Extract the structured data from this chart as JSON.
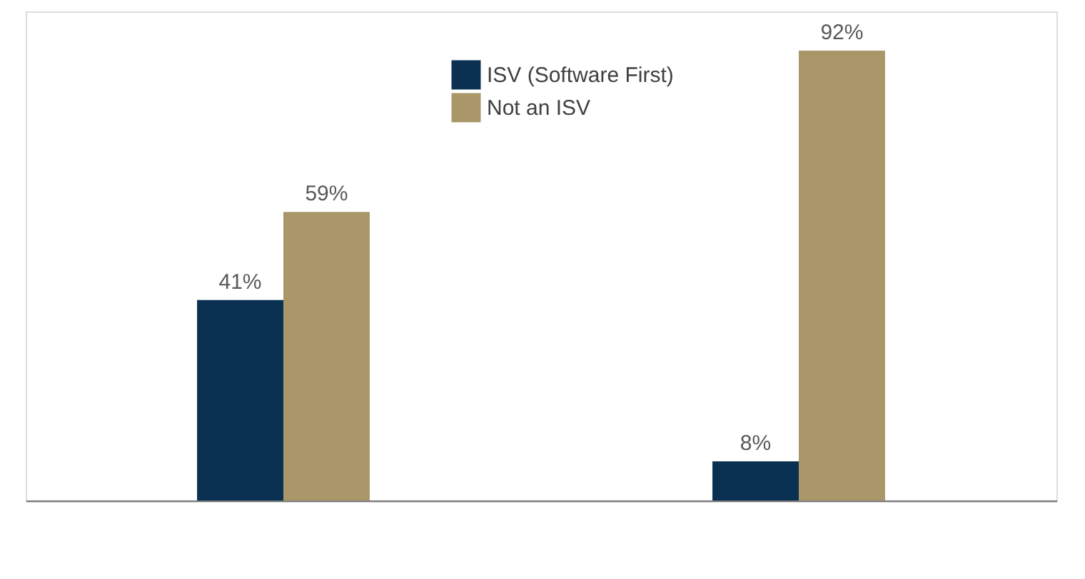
{
  "chart_data": {
    "type": "bar",
    "categories": [
      null,
      null
    ],
    "series": [
      {
        "name": "ISV (Software First)",
        "color": "#0b3152",
        "values": [
          41,
          8
        ],
        "value_labels": [
          "41%",
          "8%"
        ]
      },
      {
        "name": "Not an ISV",
        "color": "#a9976a",
        "values": [
          59,
          92
        ],
        "value_labels": [
          "59%",
          "92%"
        ]
      }
    ],
    "ylim": [
      0,
      100
    ],
    "legend": "top"
  }
}
